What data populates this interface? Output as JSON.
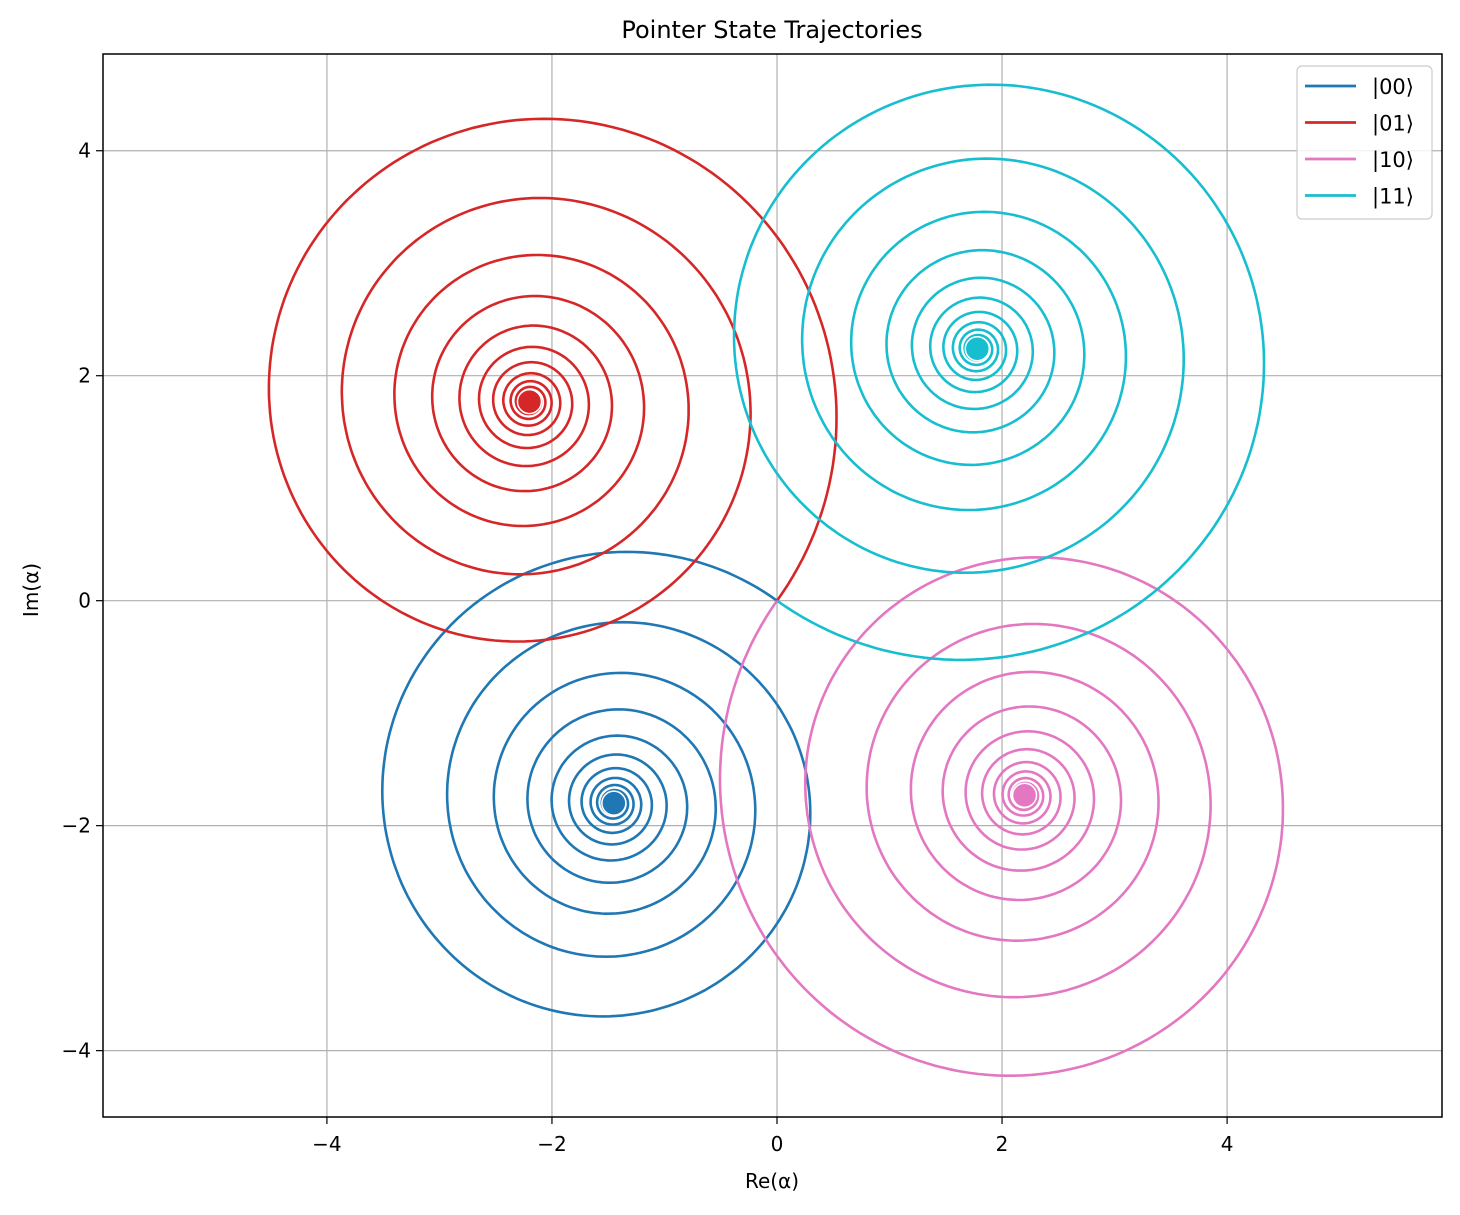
{
  "chart_data": {
    "type": "line",
    "title": "Pointer State Trajectories",
    "xlabel": "Re(α)",
    "ylabel": "Im(α)",
    "xlim": [
      -5.99,
      5.91
    ],
    "ylim": [
      -4.59,
      4.86
    ],
    "xticks": [
      -4,
      -2,
      0,
      2,
      4
    ],
    "yticks": [
      -4,
      -2,
      0,
      2,
      4
    ],
    "xtick_labels": [
      "−4",
      "−2",
      "0",
      "2",
      "4"
    ],
    "ytick_labels": [
      "−4",
      "−2",
      "0",
      "2",
      "4"
    ],
    "grid": true,
    "legend_position": "top-right",
    "series": [
      {
        "name": "|00⟩",
        "color": "#1f77b4",
        "start": [
          0,
          0
        ],
        "center": [
          -1.45,
          -1.8
        ],
        "decay_per_turn": 0.72,
        "turns": 16
      },
      {
        "name": "|01⟩",
        "color": "#d62728",
        "start": [
          0,
          0
        ],
        "center": [
          -2.2,
          1.77
        ],
        "decay_per_turn": 0.72,
        "turns": 16
      },
      {
        "name": "|10⟩",
        "color": "#e377c2",
        "start": [
          0,
          0
        ],
        "center": [
          2.2,
          -1.73
        ],
        "decay_per_turn": 0.72,
        "turns": 16
      },
      {
        "name": "|11⟩",
        "color": "#17becf",
        "start": [
          0,
          0
        ],
        "center": [
          1.78,
          2.24
        ],
        "decay_per_turn": 0.72,
        "turns": 16
      }
    ]
  }
}
